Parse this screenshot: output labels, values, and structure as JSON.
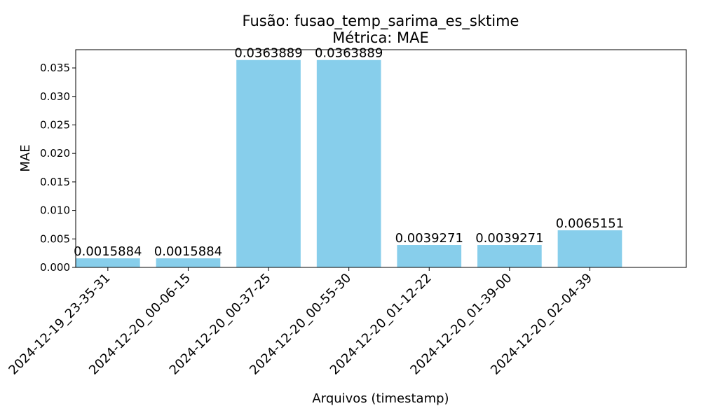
{
  "chart_data": {
    "type": "bar",
    "title": "Fusão: fusao_temp_sarima_es_sktime",
    "subtitle": "Métrica: MAE",
    "xlabel": "Arquivos (timestamp)",
    "ylabel": "MAE",
    "categories": [
      "2024-12-19_23-35-31",
      "2024-12-20_00-06-15",
      "2024-12-20_00-37-25",
      "2024-12-20_00-55-30",
      "2024-12-20_01-12-22",
      "2024-12-20_01-39-00",
      "2024-12-20_02-04-39"
    ],
    "values": [
      0.0015884,
      0.0015884,
      0.0363889,
      0.0363889,
      0.0039271,
      0.0039271,
      0.0065151
    ],
    "data_labels": [
      "0.0015884",
      "0.0015884",
      "0.0363889",
      "0.0363889",
      "0.0039271",
      "0.0039271",
      "0.0065151"
    ],
    "ylim": [
      0,
      0.0382
    ],
    "yticks": [
      0.0,
      0.005,
      0.01,
      0.015,
      0.02,
      0.025,
      0.03,
      0.035
    ],
    "ytick_labels": [
      "0.000",
      "0.005",
      "0.010",
      "0.015",
      "0.020",
      "0.025",
      "0.030",
      "0.035"
    ],
    "grid": false,
    "colors": {
      "bar": "#87ceeb",
      "axis": "#000000",
      "text": "#000000",
      "background": "#ffffff"
    }
  }
}
